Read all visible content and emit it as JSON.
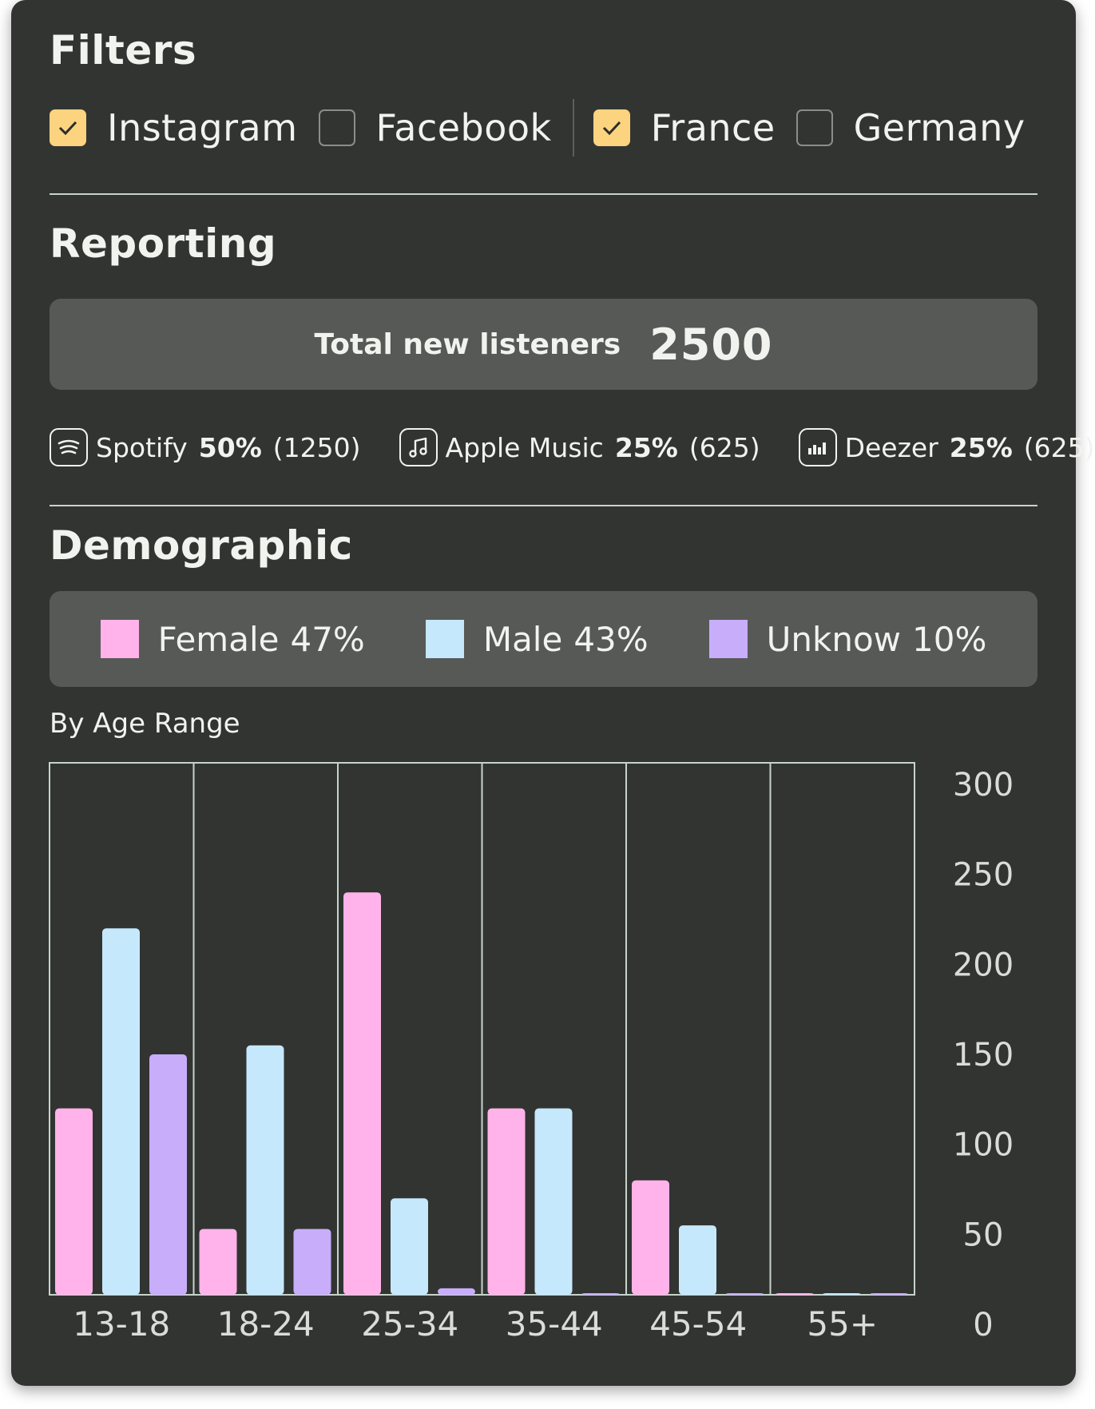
{
  "filters": {
    "title": "Filters",
    "items": [
      {
        "label": "Instagram",
        "checked": true
      },
      {
        "label": "Facebook",
        "checked": false
      },
      {
        "label": "France",
        "checked": true
      },
      {
        "label": "Germany",
        "checked": false
      }
    ]
  },
  "reporting": {
    "title": "Reporting",
    "total_label": "Total new listeners",
    "total_value": "2500",
    "platforms": [
      {
        "name": "Spotify",
        "icon": "spotify-icon",
        "pct": "50%",
        "count": "(1250)"
      },
      {
        "name": "Apple Music",
        "icon": "music-note-icon",
        "pct": "25%",
        "count": "(625)"
      },
      {
        "name": "Deezer",
        "icon": "equalizer-icon",
        "pct": "25%",
        "count": "(625)"
      }
    ]
  },
  "demographic": {
    "title": "Demographic",
    "legend": [
      {
        "name": "Female",
        "pct": "47%",
        "color": "#ffb3ea"
      },
      {
        "name": "Male",
        "pct": "43%",
        "color": "#c6e8fc"
      },
      {
        "name": "Unknow",
        "pct": "10%",
        "color": "#c7adfa"
      }
    ],
    "subtitle": "By Age Range"
  },
  "colors": {
    "card_bg": "#323432",
    "panel_bg": "#575957",
    "accent_check": "#fcd37f",
    "grid_line": "#c6d4cc"
  },
  "chart_data": {
    "type": "bar",
    "categories": [
      "13-18",
      "18-24",
      "25-34",
      "35-44",
      "45-54",
      "55+"
    ],
    "series": [
      {
        "name": "Female",
        "values": [
          120,
          53,
          240,
          120,
          80,
          5
        ]
      },
      {
        "name": "Male",
        "values": [
          220,
          155,
          70,
          120,
          55,
          13
        ]
      },
      {
        "name": "Unknow",
        "values": [
          150,
          53,
          20,
          13,
          10,
          5
        ]
      }
    ],
    "y_ticks": [
      "300",
      "250",
      "200",
      "150",
      "100",
      "50",
      "0"
    ],
    "ylim": [
      0,
      300
    ],
    "y_axis_position": "right",
    "grid": "vertical"
  }
}
